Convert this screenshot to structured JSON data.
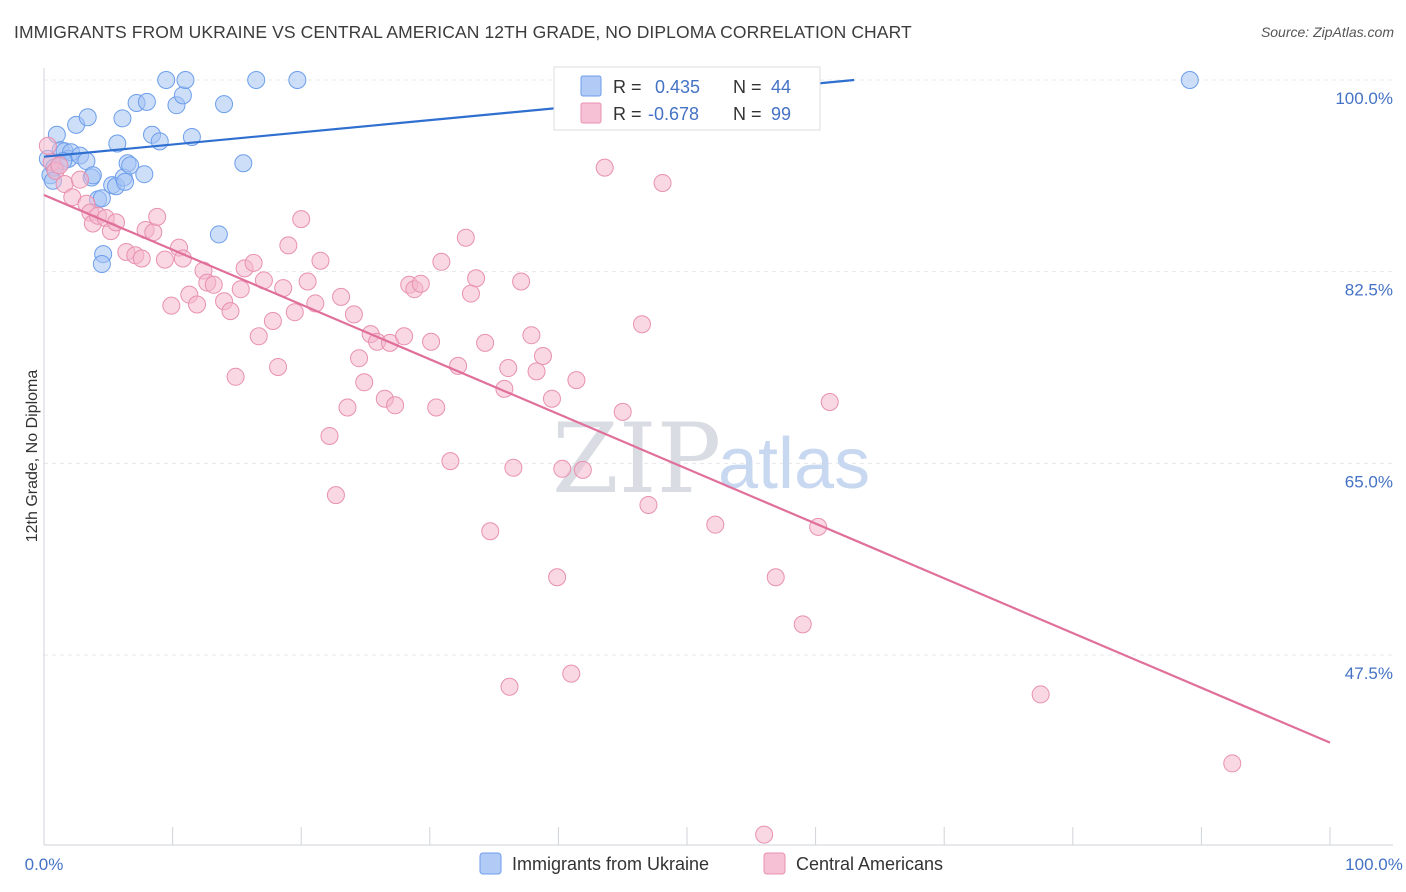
{
  "header": {
    "title": "IMMIGRANTS FROM UKRAINE VS CENTRAL AMERICAN 12TH GRADE, NO DIPLOMA CORRELATION CHART",
    "source": "Source: ZipAtlas.com"
  },
  "watermark": {
    "zip": "ZIP",
    "atlas": "atlas"
  },
  "chart_data": {
    "type": "scatter",
    "title": "IMMIGRANTS FROM UKRAINE VS CENTRAL AMERICAN 12TH GRADE, NO DIPLOMA CORRELATION CHART",
    "xlabel": "",
    "ylabel": "12th Grade, No Diploma",
    "xlim": [
      0,
      100
    ],
    "ylim": [
      30.0,
      101.5
    ],
    "x_tick_labels": [
      "0.0%",
      "100.0%"
    ],
    "y_ticks": [
      47.5,
      65.0,
      82.5,
      100.0
    ],
    "y_tick_labels": [
      "47.5%",
      "65.0%",
      "82.5%",
      "100.0%"
    ],
    "grid": true,
    "legend_position": "bottom-center",
    "series": [
      {
        "name": "Immigrants from Ukraine",
        "color": "#a4c2f4",
        "stroke": "#6d9eeb",
        "line_color": "#2f6fd0",
        "R": "0.435",
        "N": "44",
        "trend": [
          [
            0.0,
            93.0
          ],
          [
            63.0,
            100.0
          ]
        ],
        "points": [
          [
            0.3,
            92.8
          ],
          [
            0.5,
            91.3
          ],
          [
            0.8,
            92.0
          ],
          [
            1.0,
            95.0
          ],
          [
            1.3,
            93.6
          ],
          [
            1.6,
            93.5
          ],
          [
            1.9,
            92.8
          ],
          [
            2.1,
            93.4
          ],
          [
            2.5,
            95.9
          ],
          [
            2.8,
            93.1
          ],
          [
            3.3,
            92.6
          ],
          [
            3.4,
            96.6
          ],
          [
            3.7,
            91.1
          ],
          [
            3.8,
            91.3
          ],
          [
            4.2,
            89.1
          ],
          [
            4.5,
            89.2
          ],
          [
            5.3,
            90.4
          ],
          [
            5.6,
            90.3
          ],
          [
            5.7,
            94.2
          ],
          [
            6.1,
            96.5
          ],
          [
            6.2,
            91.1
          ],
          [
            6.5,
            92.4
          ],
          [
            6.7,
            92.2
          ],
          [
            7.2,
            97.9
          ],
          [
            7.8,
            91.4
          ],
          [
            8.0,
            98.0
          ],
          [
            8.4,
            95.0
          ],
          [
            9.0,
            94.4
          ],
          [
            9.5,
            100.0
          ],
          [
            10.3,
            97.7
          ],
          [
            10.8,
            98.6
          ],
          [
            11.0,
            100.0
          ],
          [
            11.5,
            94.8
          ],
          [
            14.0,
            97.8
          ],
          [
            15.5,
            92.4
          ],
          [
            16.5,
            100.0
          ],
          [
            19.7,
            100.0
          ],
          [
            13.6,
            85.9
          ],
          [
            6.3,
            90.7
          ],
          [
            4.6,
            84.1
          ],
          [
            4.5,
            83.2
          ],
          [
            1.5,
            92.6
          ],
          [
            0.7,
            90.8
          ],
          [
            89.1,
            100.0
          ]
        ]
      },
      {
        "name": "Central Americans",
        "color": "#f4b6cc",
        "stroke": "#e891b0",
        "line_color": "#e0709a",
        "R": "-0.678",
        "N": "99",
        "trend": [
          [
            0.0,
            89.5
          ],
          [
            100.0,
            39.5
          ]
        ],
        "points": [
          [
            0.3,
            94.0
          ],
          [
            0.6,
            92.5
          ],
          [
            0.9,
            91.7
          ],
          [
            1.2,
            92.2
          ],
          [
            1.6,
            90.5
          ],
          [
            2.2,
            89.3
          ],
          [
            2.8,
            90.9
          ],
          [
            3.3,
            88.7
          ],
          [
            3.6,
            87.9
          ],
          [
            3.8,
            86.9
          ],
          [
            4.2,
            87.6
          ],
          [
            4.8,
            87.4
          ],
          [
            5.2,
            86.2
          ],
          [
            5.6,
            87.0
          ],
          [
            6.4,
            84.3
          ],
          [
            7.1,
            84.0
          ],
          [
            7.6,
            83.7
          ],
          [
            7.9,
            86.3
          ],
          [
            8.5,
            86.1
          ],
          [
            8.8,
            87.5
          ],
          [
            9.4,
            83.6
          ],
          [
            9.9,
            79.4
          ],
          [
            10.5,
            84.7
          ],
          [
            10.8,
            83.7
          ],
          [
            11.3,
            80.4
          ],
          [
            11.9,
            79.5
          ],
          [
            12.4,
            82.6
          ],
          [
            12.7,
            81.5
          ],
          [
            13.2,
            81.3
          ],
          [
            14.0,
            79.8
          ],
          [
            14.5,
            78.9
          ],
          [
            14.9,
            72.9
          ],
          [
            15.3,
            80.9
          ],
          [
            15.6,
            82.8
          ],
          [
            16.3,
            83.3
          ],
          [
            16.7,
            76.6
          ],
          [
            17.1,
            81.7
          ],
          [
            17.8,
            78.0
          ],
          [
            18.2,
            73.8
          ],
          [
            18.6,
            81.0
          ],
          [
            19.0,
            84.9
          ],
          [
            19.5,
            78.8
          ],
          [
            20.0,
            87.3
          ],
          [
            20.5,
            81.6
          ],
          [
            21.1,
            79.6
          ],
          [
            21.5,
            83.5
          ],
          [
            22.2,
            67.5
          ],
          [
            22.7,
            62.1
          ],
          [
            23.1,
            80.2
          ],
          [
            23.6,
            70.1
          ],
          [
            24.1,
            78.6
          ],
          [
            24.5,
            74.6
          ],
          [
            24.9,
            72.4
          ],
          [
            25.4,
            76.8
          ],
          [
            25.9,
            76.1
          ],
          [
            26.5,
            70.9
          ],
          [
            26.9,
            76.0
          ],
          [
            27.3,
            70.3
          ],
          [
            28.0,
            76.6
          ],
          [
            28.4,
            81.3
          ],
          [
            28.8,
            80.9
          ],
          [
            29.3,
            81.4
          ],
          [
            30.1,
            76.1
          ],
          [
            30.5,
            70.1
          ],
          [
            30.9,
            83.4
          ],
          [
            31.6,
            65.2
          ],
          [
            32.2,
            73.9
          ],
          [
            32.8,
            85.6
          ],
          [
            33.2,
            80.5
          ],
          [
            33.6,
            81.9
          ],
          [
            34.3,
            76.0
          ],
          [
            34.7,
            58.8
          ],
          [
            35.8,
            71.8
          ],
          [
            36.1,
            73.7
          ],
          [
            36.5,
            64.6
          ],
          [
            37.1,
            81.6
          ],
          [
            37.9,
            76.7
          ],
          [
            38.3,
            73.4
          ],
          [
            38.8,
            74.8
          ],
          [
            39.5,
            70.9
          ],
          [
            39.9,
            54.6
          ],
          [
            40.3,
            64.5
          ],
          [
            41.0,
            45.8
          ],
          [
            41.4,
            72.6
          ],
          [
            41.9,
            64.4
          ],
          [
            43.6,
            92.0
          ],
          [
            45.0,
            69.7
          ],
          [
            46.5,
            77.7
          ],
          [
            47.0,
            61.2
          ],
          [
            48.1,
            90.6
          ],
          [
            52.2,
            59.4
          ],
          [
            56.9,
            54.6
          ],
          [
            59.0,
            50.3
          ],
          [
            60.2,
            59.2
          ],
          [
            61.1,
            70.6
          ],
          [
            36.2,
            44.6
          ],
          [
            77.5,
            43.9
          ],
          [
            92.4,
            37.6
          ],
          [
            56.0,
            31.1
          ]
        ]
      }
    ]
  }
}
